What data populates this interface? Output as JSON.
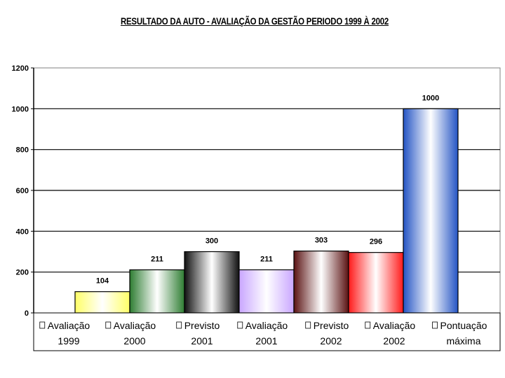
{
  "chart_data": {
    "type": "bar",
    "title": "RESULTADO DA AUTO - AVALIAÇÃO DA GESTÃO PERIODO 1999 À 2002",
    "xlabel": "",
    "ylabel": "",
    "ylim": [
      0,
      1200
    ],
    "yticks": [
      0,
      200,
      400,
      600,
      800,
      1000,
      1200
    ],
    "grid": true,
    "legend": "bottom",
    "series": [
      {
        "name": "Avaliação 1999",
        "label_lines": [
          "Avaliação",
          "1999"
        ],
        "value": 104,
        "value_label": "104",
        "color": "#ffff66"
      },
      {
        "name": "Avaliação 2000",
        "label_lines": [
          "Avaliação",
          "2000"
        ],
        "value": 211,
        "value_label": "211",
        "color": "#2e7d32"
      },
      {
        "name": "Previsto 2001",
        "label_lines": [
          "Previsto",
          "2001"
        ],
        "value": 300,
        "value_label": "300",
        "color": "#111111"
      },
      {
        "name": "Avaliação 2001",
        "label_lines": [
          "Avaliação",
          "2001"
        ],
        "value": 211,
        "value_label": "211",
        "color": "#c9a6ff"
      },
      {
        "name": "Previsto 2002",
        "label_lines": [
          "Previsto",
          "2002"
        ],
        "value": 303,
        "value_label": "303",
        "color": "#5a1212"
      },
      {
        "name": "Avaliação 2002",
        "label_lines": [
          "Avaliação",
          "2002"
        ],
        "value": 296,
        "value_label": "296",
        "color": "#ff1a1a"
      },
      {
        "name": "Pontuação máxima",
        "label_lines": [
          "Pontuação",
          "máxima"
        ],
        "value": 1000,
        "value_label": "1000",
        "color": "#2454c4"
      }
    ]
  }
}
